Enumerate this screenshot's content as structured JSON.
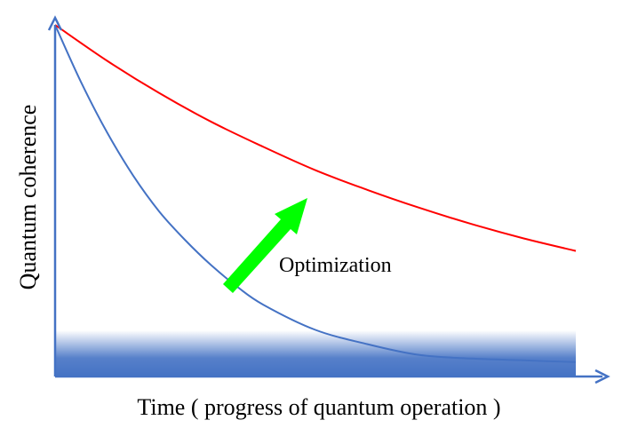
{
  "xlabel": "Time ( progress of quantum operation )",
  "ylabel": "Quantum coherence",
  "annotation": "Optimization",
  "colors": {
    "axis": "#4472C4",
    "baseline_curve": "#4472C4",
    "optimized_curve": "#FF0000",
    "arrow": "#00FF00",
    "floor_band": "#4472C4"
  },
  "chart_data": {
    "type": "line",
    "title": "",
    "xlabel": "Time ( progress of quantum operation )",
    "ylabel": "Quantum coherence",
    "x_ticks": [],
    "y_ticks": [],
    "xlim": [
      0,
      1
    ],
    "ylim": [
      0,
      1
    ],
    "series": [
      {
        "color": "#4472C4",
        "points": [
          [
            0.0,
            0.98
          ],
          [
            0.05,
            0.82
          ],
          [
            0.1,
            0.68
          ],
          [
            0.15,
            0.56
          ],
          [
            0.2,
            0.46
          ],
          [
            0.25,
            0.38
          ],
          [
            0.3,
            0.31
          ],
          [
            0.35,
            0.25
          ],
          [
            0.4,
            0.2
          ],
          [
            0.5,
            0.13
          ],
          [
            0.6,
            0.09
          ],
          [
            0.7,
            0.06
          ],
          [
            0.8,
            0.05
          ],
          [
            0.9,
            0.045
          ],
          [
            1.0,
            0.04
          ]
        ]
      },
      {
        "color": "#FF0000",
        "points": [
          [
            0.0,
            0.98
          ],
          [
            0.1,
            0.88
          ],
          [
            0.2,
            0.79
          ],
          [
            0.3,
            0.71
          ],
          [
            0.4,
            0.64
          ],
          [
            0.5,
            0.575
          ],
          [
            0.6,
            0.52
          ],
          [
            0.7,
            0.47
          ],
          [
            0.8,
            0.425
          ],
          [
            0.9,
            0.385
          ],
          [
            1.0,
            0.35
          ]
        ]
      }
    ]
  }
}
